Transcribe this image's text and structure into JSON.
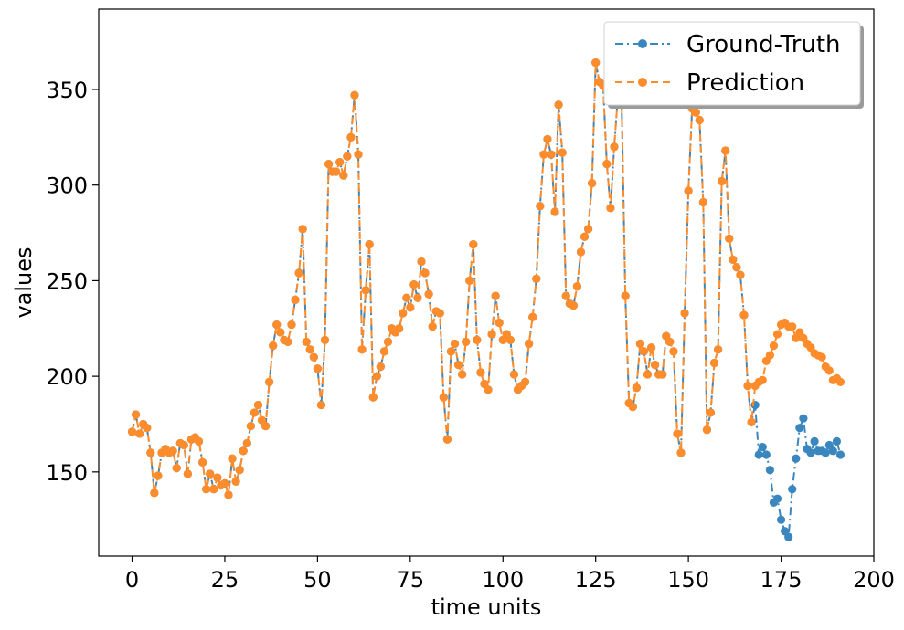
{
  "chart_data": {
    "type": "line",
    "title": "",
    "xlabel": "time units",
    "ylabel": "values",
    "xlim": [
      -9,
      200
    ],
    "ylim": [
      106,
      392
    ],
    "xticks": [
      0,
      25,
      50,
      75,
      100,
      125,
      150,
      175,
      200
    ],
    "yticks": [
      150,
      200,
      250,
      300,
      350
    ],
    "xtick_labels": [
      "0",
      "25",
      "50",
      "75",
      "100",
      "125",
      "150",
      "175",
      "200"
    ],
    "ytick_labels": [
      "150",
      "200",
      "250",
      "300",
      "350"
    ],
    "grid": false,
    "legend_position": "top-right",
    "series": [
      {
        "name": "Ground-Truth",
        "color": "#3a87bf",
        "line_style": "dashdot",
        "marker": "circle",
        "values": [
          171,
          180,
          170,
          175,
          173,
          160,
          139,
          148,
          160,
          162,
          160,
          161,
          152,
          165,
          164,
          149,
          167,
          168,
          166,
          155,
          141,
          149,
          141,
          147,
          143,
          144,
          138,
          157,
          145,
          151,
          161,
          165,
          174,
          181,
          185,
          177,
          174,
          197,
          216,
          227,
          223,
          219,
          218,
          227,
          240,
          254,
          277,
          218,
          214,
          210,
          204,
          185,
          219,
          311,
          307,
          307,
          312,
          305,
          315,
          325,
          347,
          316,
          214,
          245,
          269,
          189,
          200,
          205,
          213,
          218,
          225,
          223,
          225,
          233,
          241,
          236,
          248,
          241,
          260,
          254,
          243,
          226,
          234,
          233,
          189,
          167,
          213,
          217,
          206,
          201,
          218,
          250,
          269,
          219,
          202,
          196,
          193,
          222,
          242,
          228,
          219,
          222,
          219,
          201,
          193,
          195,
          197,
          217,
          231,
          251,
          289,
          316,
          324,
          316,
          286,
          342,
          317,
          242,
          238,
          237,
          247,
          265,
          273,
          277,
          301,
          364,
          354,
          352,
          311,
          288,
          320,
          347,
          343,
          242,
          186,
          184,
          194,
          217,
          213,
          201,
          215,
          206,
          201,
          201,
          221,
          218,
          213,
          170,
          160,
          233,
          297,
          340,
          338,
          334,
          291,
          172,
          181,
          207,
          214,
          302,
          318,
          272,
          261,
          257,
          253,
          232,
          195,
          176,
          185,
          159,
          163,
          159,
          151,
          134,
          136,
          125,
          119,
          116,
          141,
          157,
          173,
          178,
          162,
          160,
          166,
          161,
          161,
          160,
          164,
          161,
          166,
          159
        ]
      },
      {
        "name": "Prediction",
        "color": "#ff8c2b",
        "line_style": "dashed",
        "marker": "circle",
        "values": [
          171,
          180,
          170,
          175,
          173,
          160,
          139,
          148,
          160,
          162,
          160,
          161,
          152,
          165,
          164,
          149,
          167,
          168,
          166,
          155,
          141,
          149,
          141,
          147,
          143,
          144,
          138,
          157,
          145,
          151,
          161,
          165,
          174,
          181,
          185,
          177,
          174,
          197,
          216,
          227,
          223,
          219,
          218,
          227,
          240,
          254,
          277,
          218,
          214,
          210,
          204,
          185,
          219,
          311,
          307,
          307,
          312,
          305,
          315,
          325,
          347,
          316,
          214,
          245,
          269,
          189,
          200,
          205,
          213,
          218,
          225,
          223,
          225,
          233,
          241,
          236,
          248,
          241,
          260,
          254,
          243,
          226,
          234,
          233,
          189,
          167,
          213,
          217,
          206,
          201,
          218,
          250,
          269,
          219,
          202,
          196,
          193,
          222,
          242,
          228,
          219,
          222,
          219,
          201,
          193,
          195,
          197,
          217,
          231,
          251,
          289,
          316,
          324,
          316,
          286,
          342,
          317,
          242,
          238,
          237,
          247,
          265,
          273,
          277,
          301,
          364,
          354,
          352,
          311,
          288,
          320,
          347,
          343,
          242,
          186,
          184,
          194,
          217,
          213,
          201,
          215,
          206,
          201,
          201,
          221,
          218,
          213,
          170,
          160,
          233,
          297,
          340,
          338,
          334,
          291,
          172,
          181,
          207,
          214,
          302,
          318,
          272,
          261,
          257,
          253,
          232,
          195,
          176,
          195,
          197,
          198,
          208,
          211,
          216,
          222,
          227,
          228,
          226,
          226,
          220,
          223,
          220,
          217,
          215,
          212,
          211,
          210,
          205,
          203,
          198,
          199,
          197
        ]
      }
    ]
  }
}
